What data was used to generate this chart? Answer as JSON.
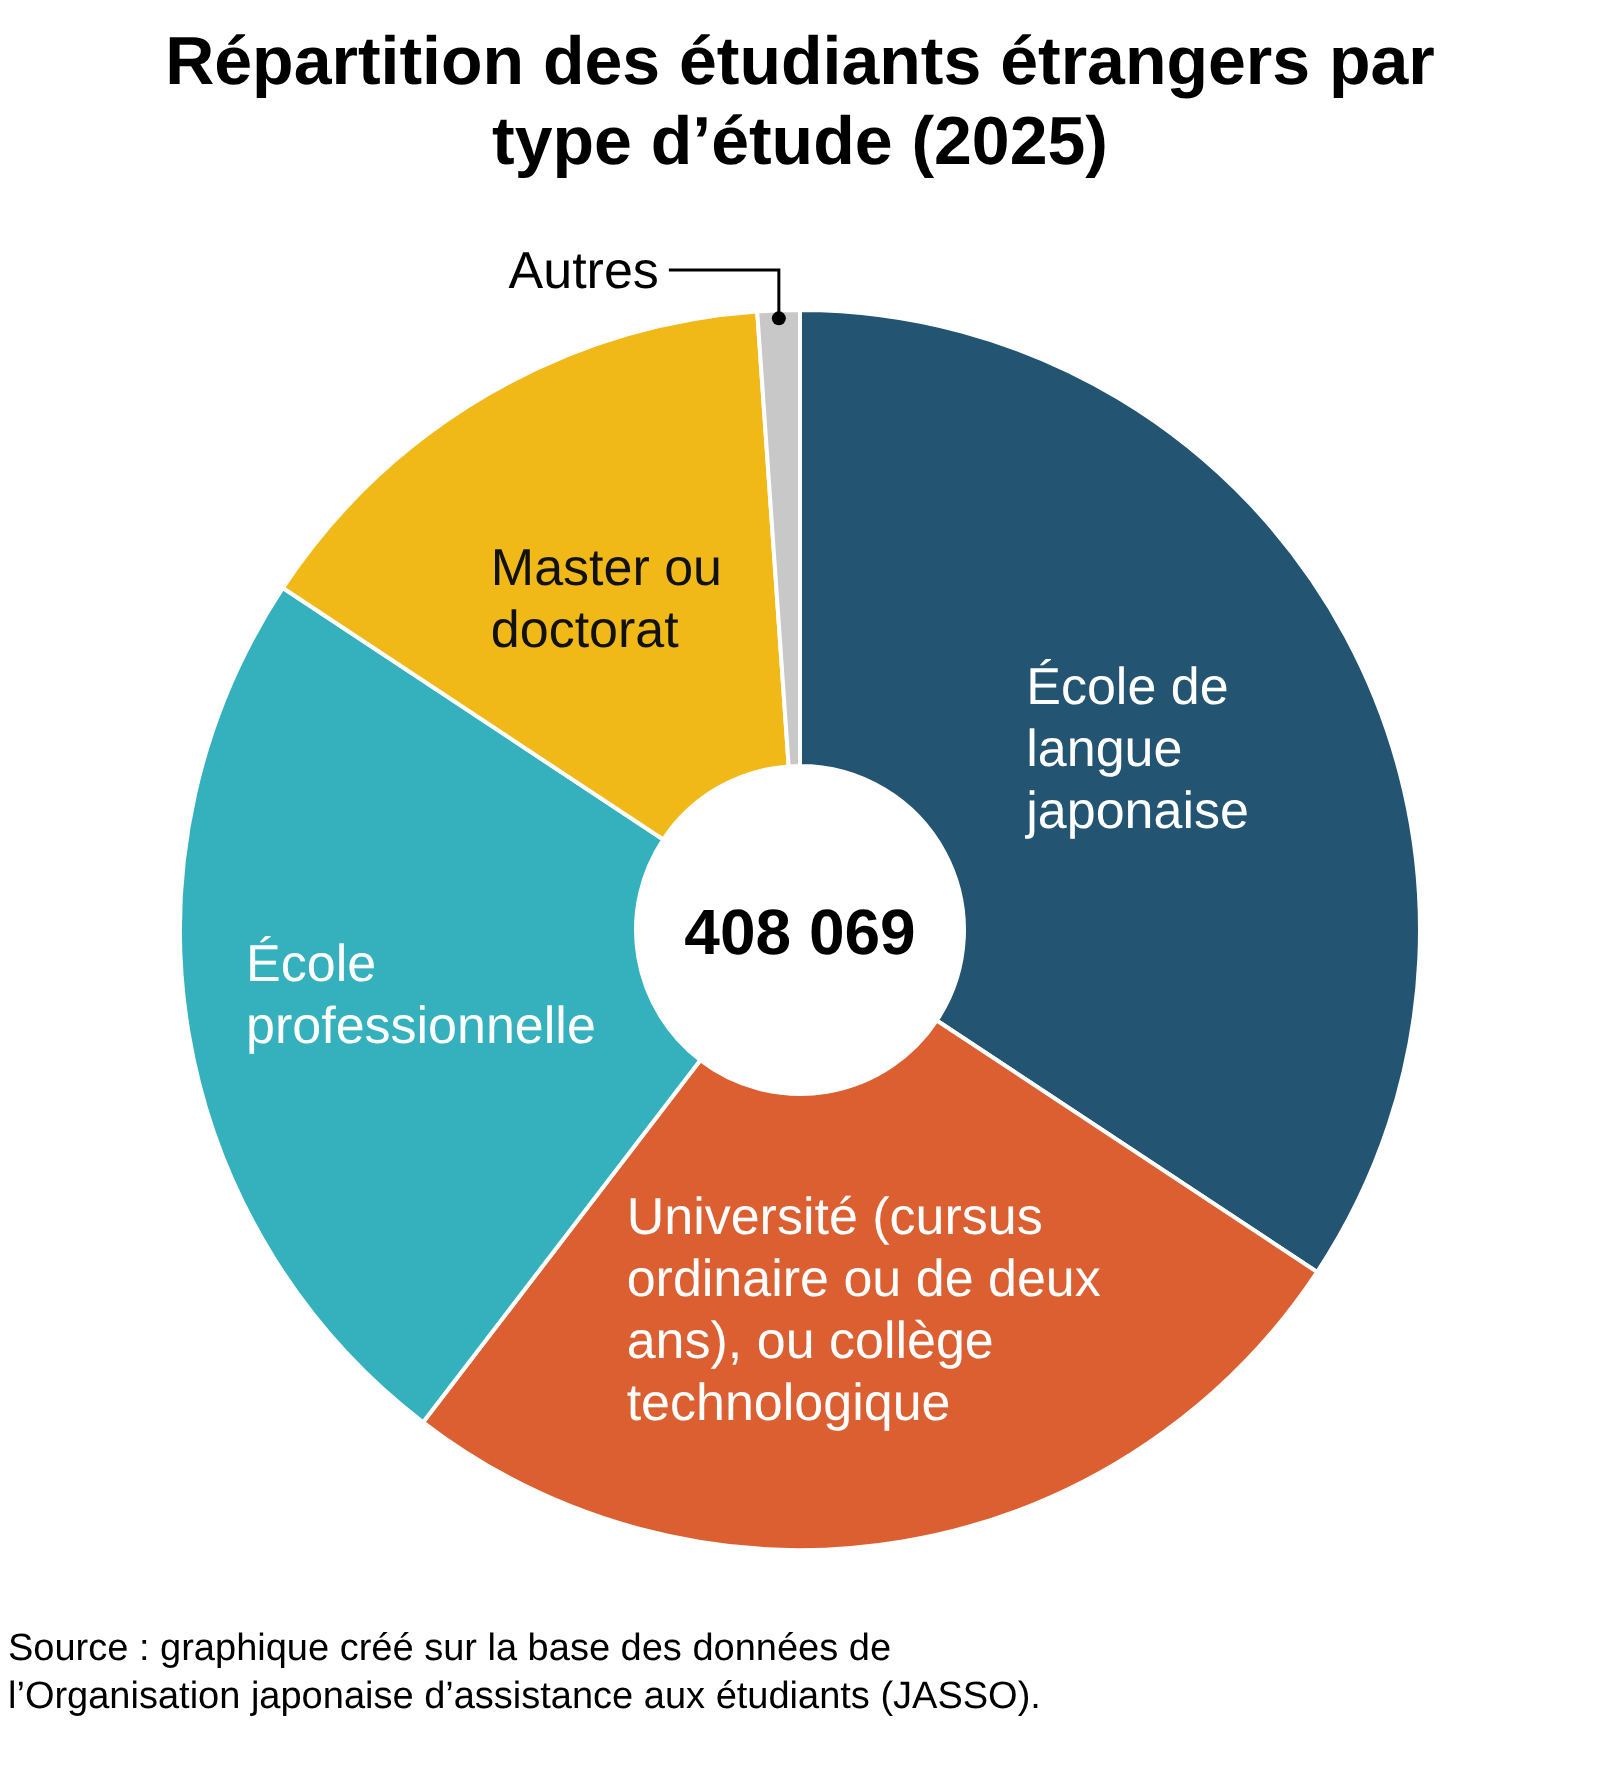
{
  "chart_data": {
    "type": "donut",
    "title": "Répartition des étudiants étrangers par type d’étude (2025)",
    "categories": [
      "École de langue japonaise",
      "Université (cursus ordinaire ou de deux ans), ou collège technologique",
      "École professionnelle",
      "Master ou doctorat",
      "Autres"
    ],
    "values": [
      34.3,
      26.1,
      23.9,
      14.6,
      1.1
    ],
    "colors": [
      "#235573",
      "#db5f31",
      "#35b1be",
      "#f0b918",
      "#c8c8c8"
    ],
    "annotations": [
      "408 069",
      "Source : graphique créé sur la base des données de l’Organisation japonaise d’assistance aux étudiants (JASSO)."
    ]
  }
}
